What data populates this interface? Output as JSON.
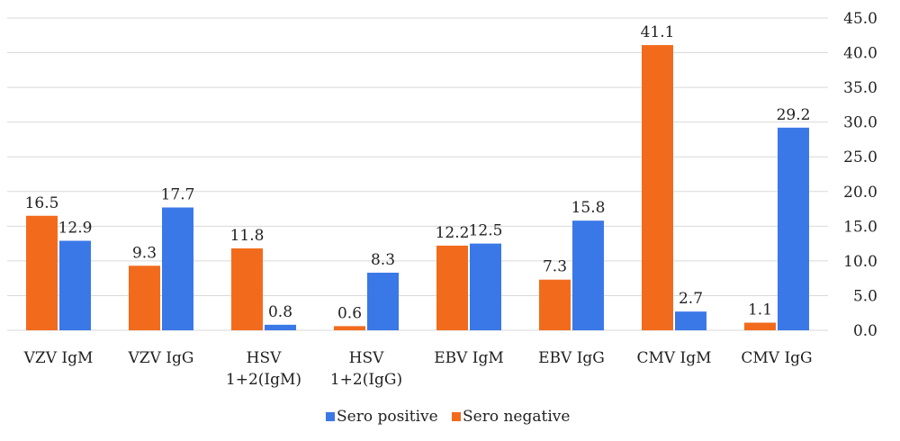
{
  "chart_data": {
    "type": "bar",
    "categories": [
      [
        "VZV IgM"
      ],
      [
        "VZV IgG"
      ],
      [
        "HSV",
        "1+2(IgM)"
      ],
      [
        "HSV",
        "1+2(IgG)"
      ],
      [
        "EBV IgM"
      ],
      [
        "EBV IgG"
      ],
      [
        "CMV IgM"
      ],
      [
        "CMV IgG"
      ]
    ],
    "series": [
      {
        "name": "Sero negative",
        "color": "#f26b1d",
        "values": [
          16.5,
          9.3,
          11.8,
          0.6,
          12.2,
          7.3,
          41.1,
          1.1
        ]
      },
      {
        "name": "Sero positive",
        "color": "#3b78e7",
        "values": [
          12.9,
          17.7,
          0.8,
          8.3,
          12.5,
          15.8,
          2.7,
          29.2
        ]
      }
    ],
    "data_labels": [
      [
        "16.5",
        "9.3",
        "11.8",
        "0.6",
        "12.2",
        "7.3",
        "41.1",
        "1.1"
      ],
      [
        "12.9",
        "17.7",
        "0.8",
        "8.3",
        "12.5",
        "15.8",
        "2.7",
        "29.2"
      ]
    ],
    "yaxis": {
      "position": "right",
      "ylim": [
        0,
        45
      ],
      "ticks": [
        0,
        5,
        10,
        15,
        20,
        25,
        30,
        35,
        40,
        45
      ],
      "tick_labels": [
        "0.0",
        "5.0",
        "10.0",
        "15.0",
        "20.0",
        "25.0",
        "30.0",
        "35.0",
        "40.0",
        "45.0"
      ]
    },
    "grid": true,
    "legend": {
      "placement": "bottom",
      "order": [
        "Sero positive",
        "Sero negative"
      ]
    }
  }
}
